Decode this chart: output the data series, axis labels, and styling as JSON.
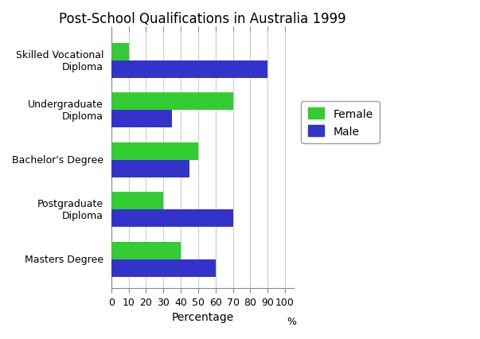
{
  "title": "Post-School Qualifications in Australia 1999",
  "categories": [
    "Skilled Vocational\nDiploma",
    "Undergraduate\nDiploma",
    "Bachelor's Degree",
    "Postgraduate\nDiploma",
    "Masters Degree"
  ],
  "female_values": [
    10,
    70,
    50,
    30,
    40
  ],
  "male_values": [
    90,
    35,
    45,
    70,
    60
  ],
  "female_color": "#33cc33",
  "male_color": "#3333cc",
  "xlabel": "Percentage",
  "xlim": [
    0,
    105
  ],
  "xticks": [
    0,
    10,
    20,
    30,
    40,
    50,
    60,
    70,
    80,
    90,
    100
  ],
  "xtick_labels": [
    "0",
    "10",
    "20",
    "30",
    "40",
    "50",
    "60",
    "70",
    "80",
    "90",
    "100"
  ],
  "legend_labels": [
    "Female",
    "Male"
  ],
  "background_color": "#ffffff",
  "bar_height": 0.35,
  "title_fontsize": 12,
  "axis_label_fontsize": 10,
  "tick_fontsize": 9,
  "legend_fontsize": 10
}
